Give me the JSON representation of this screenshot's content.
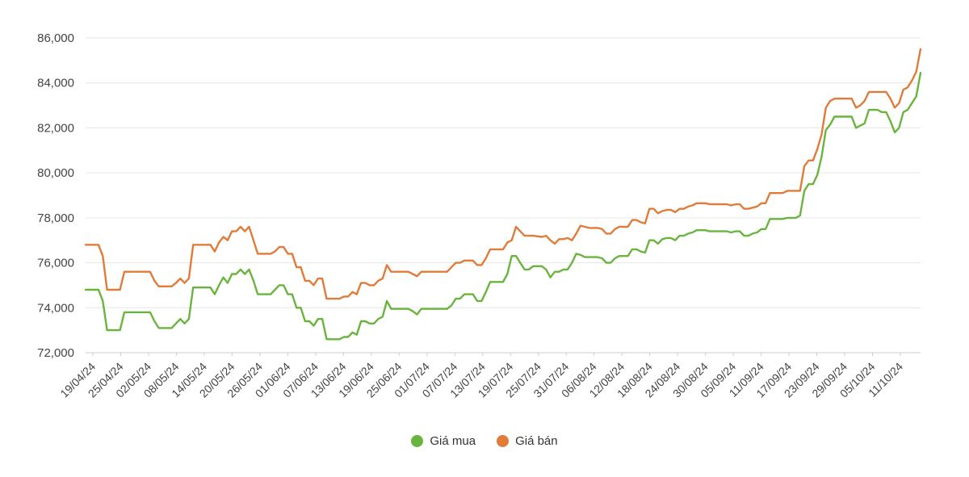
{
  "colors": {
    "buy": "#6ab43e",
    "sell": "#e07b39",
    "grid": "#e6e6e6",
    "axis": "#cccccc",
    "text": "#444444"
  },
  "chart_data": {
    "type": "line",
    "title": "",
    "xlabel": "",
    "ylabel": "",
    "ylim": [
      72000,
      86000
    ],
    "yticks": [
      72000,
      74000,
      76000,
      78000,
      80000,
      82000,
      84000,
      86000
    ],
    "ytick_labels": [
      "72,000",
      "74,000",
      "76,000",
      "78,000",
      "80,000",
      "82,000",
      "84,000",
      "86,000"
    ],
    "grid": true,
    "legend_position": "bottom",
    "x_tick_labels": [
      "19/04/24",
      "25/04/24",
      "02/05/24",
      "08/05/24",
      "14/05/24",
      "20/05/24",
      "26/05/24",
      "01/06/24",
      "07/06/24",
      "13/06/24",
      "19/06/24",
      "25/06/24",
      "01/07/24",
      "07/07/24",
      "13/07/24",
      "19/07/24",
      "25/07/24",
      "31/07/24",
      "06/08/24",
      "12/08/24",
      "18/08/24",
      "24/08/24",
      "30/08/24",
      "05/09/24",
      "11/09/24",
      "17/09/24",
      "23/09/24",
      "29/09/24",
      "05/10/24",
      "11/10/24"
    ],
    "series": [
      {
        "name": "Giá mua",
        "points": [
          [
            0,
            74800
          ],
          [
            3,
            74800
          ],
          [
            4,
            74300
          ],
          [
            5,
            73000
          ],
          [
            8,
            73000
          ],
          [
            9,
            73800
          ],
          [
            11,
            73800
          ],
          [
            15,
            73800
          ],
          [
            16,
            73400
          ],
          [
            17,
            73100
          ],
          [
            20,
            73100
          ],
          [
            21,
            73300
          ],
          [
            22,
            73500
          ],
          [
            23,
            73300
          ],
          [
            24,
            73500
          ],
          [
            25,
            74900
          ],
          [
            27,
            74900
          ],
          [
            29,
            74900
          ],
          [
            30,
            74600
          ],
          [
            31,
            75000
          ],
          [
            32,
            75350
          ],
          [
            33,
            75100
          ],
          [
            34,
            75500
          ],
          [
            35,
            75500
          ],
          [
            36,
            75700
          ],
          [
            37,
            75500
          ],
          [
            38,
            75700
          ],
          [
            39,
            75200
          ],
          [
            40,
            74600
          ],
          [
            43,
            74600
          ],
          [
            44,
            74800
          ],
          [
            45,
            75000
          ],
          [
            46,
            75000
          ],
          [
            47,
            74600
          ],
          [
            48,
            74600
          ],
          [
            49,
            74000
          ],
          [
            50,
            74000
          ],
          [
            51,
            73400
          ],
          [
            52,
            73400
          ],
          [
            53,
            73200
          ],
          [
            54,
            73500
          ],
          [
            55,
            73500
          ],
          [
            56,
            72600
          ],
          [
            59,
            72600
          ],
          [
            60,
            72700
          ],
          [
            61,
            72700
          ],
          [
            62,
            72900
          ],
          [
            63,
            72800
          ],
          [
            64,
            73400
          ],
          [
            65,
            73400
          ],
          [
            66,
            73300
          ],
          [
            67,
            73300
          ],
          [
            68,
            73500
          ],
          [
            69,
            73600
          ],
          [
            70,
            74300
          ],
          [
            71,
            73950
          ],
          [
            75,
            73950
          ],
          [
            76,
            73850
          ],
          [
            77,
            73700
          ],
          [
            78,
            73950
          ],
          [
            84,
            73950
          ],
          [
            85,
            74100
          ],
          [
            86,
            74400
          ],
          [
            87,
            74400
          ],
          [
            88,
            74600
          ],
          [
            90,
            74600
          ],
          [
            91,
            74300
          ],
          [
            92,
            74300
          ],
          [
            93,
            74700
          ],
          [
            94,
            75150
          ],
          [
            97,
            75150
          ],
          [
            98,
            75500
          ],
          [
            99,
            76300
          ],
          [
            100,
            76300
          ],
          [
            101,
            76000
          ],
          [
            102,
            75700
          ],
          [
            103,
            75700
          ],
          [
            104,
            75850
          ],
          [
            106,
            75850
          ],
          [
            107,
            75700
          ],
          [
            108,
            75350
          ],
          [
            109,
            75600
          ],
          [
            110,
            75600
          ],
          [
            111,
            75700
          ],
          [
            112,
            75700
          ],
          [
            113,
            76000
          ],
          [
            114,
            76400
          ],
          [
            115,
            76350
          ],
          [
            116,
            76250
          ],
          [
            119,
            76250
          ],
          [
            120,
            76200
          ],
          [
            121,
            76000
          ],
          [
            122,
            76000
          ],
          [
            123,
            76200
          ],
          [
            124,
            76300
          ],
          [
            126,
            76300
          ],
          [
            127,
            76600
          ],
          [
            128,
            76600
          ],
          [
            129,
            76500
          ],
          [
            130,
            76450
          ],
          [
            131,
            77000
          ],
          [
            132,
            77000
          ],
          [
            133,
            76850
          ],
          [
            134,
            77050
          ],
          [
            135,
            77100
          ],
          [
            136,
            77100
          ],
          [
            137,
            77000
          ],
          [
            138,
            77200
          ],
          [
            139,
            77200
          ],
          [
            140,
            77300
          ],
          [
            141,
            77350
          ],
          [
            142,
            77450
          ],
          [
            144,
            77450
          ],
          [
            145,
            77400
          ],
          [
            149,
            77400
          ],
          [
            150,
            77350
          ],
          [
            151,
            77400
          ],
          [
            152,
            77400
          ],
          [
            153,
            77200
          ],
          [
            154,
            77200
          ],
          [
            155,
            77300
          ],
          [
            156,
            77350
          ],
          [
            157,
            77500
          ],
          [
            158,
            77500
          ],
          [
            159,
            77950
          ],
          [
            162,
            77950
          ],
          [
            163,
            78000
          ],
          [
            165,
            78000
          ],
          [
            166,
            78100
          ],
          [
            167,
            79200
          ],
          [
            168,
            79500
          ],
          [
            169,
            79500
          ],
          [
            170,
            79900
          ],
          [
            171,
            80700
          ],
          [
            172,
            81900
          ],
          [
            173,
            82150
          ],
          [
            174,
            82500
          ],
          [
            178,
            82500
          ],
          [
            179,
            82000
          ],
          [
            180,
            82100
          ],
          [
            181,
            82200
          ],
          [
            182,
            82800
          ],
          [
            184,
            82800
          ],
          [
            185,
            82700
          ],
          [
            186,
            82700
          ],
          [
            187,
            82300
          ],
          [
            188,
            81800
          ],
          [
            189,
            82000
          ],
          [
            190,
            82700
          ],
          [
            191,
            82800
          ],
          [
            192,
            83100
          ],
          [
            193,
            83400
          ],
          [
            194,
            84450
          ]
        ]
      },
      {
        "name": "Giá bán",
        "points": [
          [
            0,
            76800
          ],
          [
            3,
            76800
          ],
          [
            4,
            76300
          ],
          [
            5,
            74800
          ],
          [
            8,
            74800
          ],
          [
            9,
            75600
          ],
          [
            11,
            75600
          ],
          [
            15,
            75600
          ],
          [
            16,
            75200
          ],
          [
            17,
            74950
          ],
          [
            20,
            74950
          ],
          [
            21,
            75100
          ],
          [
            22,
            75300
          ],
          [
            23,
            75100
          ],
          [
            24,
            75300
          ],
          [
            25,
            76800
          ],
          [
            27,
            76800
          ],
          [
            29,
            76800
          ],
          [
            30,
            76500
          ],
          [
            31,
            76900
          ],
          [
            32,
            77150
          ],
          [
            33,
            77000
          ],
          [
            34,
            77400
          ],
          [
            35,
            77400
          ],
          [
            36,
            77600
          ],
          [
            37,
            77400
          ],
          [
            38,
            77600
          ],
          [
            39,
            77000
          ],
          [
            40,
            76400
          ],
          [
            43,
            76400
          ],
          [
            44,
            76500
          ],
          [
            45,
            76700
          ],
          [
            46,
            76700
          ],
          [
            47,
            76400
          ],
          [
            48,
            76400
          ],
          [
            49,
            75800
          ],
          [
            50,
            75800
          ],
          [
            51,
            75200
          ],
          [
            52,
            75200
          ],
          [
            53,
            75000
          ],
          [
            54,
            75300
          ],
          [
            55,
            75300
          ],
          [
            56,
            74400
          ],
          [
            59,
            74400
          ],
          [
            60,
            74500
          ],
          [
            61,
            74500
          ],
          [
            62,
            74700
          ],
          [
            63,
            74600
          ],
          [
            64,
            75100
          ],
          [
            65,
            75100
          ],
          [
            66,
            75000
          ],
          [
            67,
            75000
          ],
          [
            68,
            75200
          ],
          [
            69,
            75300
          ],
          [
            70,
            75900
          ],
          [
            71,
            75600
          ],
          [
            75,
            75600
          ],
          [
            76,
            75500
          ],
          [
            77,
            75400
          ],
          [
            78,
            75600
          ],
          [
            84,
            75600
          ],
          [
            85,
            75800
          ],
          [
            86,
            76000
          ],
          [
            87,
            76000
          ],
          [
            88,
            76100
          ],
          [
            90,
            76100
          ],
          [
            91,
            75900
          ],
          [
            92,
            75900
          ],
          [
            93,
            76200
          ],
          [
            94,
            76600
          ],
          [
            97,
            76600
          ],
          [
            98,
            76900
          ],
          [
            99,
            77000
          ],
          [
            100,
            77600
          ],
          [
            101,
            77400
          ],
          [
            102,
            77200
          ],
          [
            103,
            77200
          ],
          [
            104,
            77200
          ],
          [
            106,
            77150
          ],
          [
            107,
            77200
          ],
          [
            108,
            77000
          ],
          [
            109,
            76850
          ],
          [
            110,
            77050
          ],
          [
            111,
            77050
          ],
          [
            112,
            77100
          ],
          [
            113,
            77000
          ],
          [
            114,
            77300
          ],
          [
            115,
            77650
          ],
          [
            116,
            77600
          ],
          [
            117,
            77550
          ],
          [
            119,
            77550
          ],
          [
            120,
            77500
          ],
          [
            121,
            77300
          ],
          [
            122,
            77300
          ],
          [
            123,
            77500
          ],
          [
            124,
            77600
          ],
          [
            126,
            77600
          ],
          [
            127,
            77900
          ],
          [
            128,
            77900
          ],
          [
            129,
            77800
          ],
          [
            130,
            77750
          ],
          [
            131,
            78400
          ],
          [
            132,
            78400
          ],
          [
            133,
            78200
          ],
          [
            134,
            78300
          ],
          [
            135,
            78350
          ],
          [
            136,
            78350
          ],
          [
            137,
            78250
          ],
          [
            138,
            78400
          ],
          [
            139,
            78400
          ],
          [
            140,
            78500
          ],
          [
            141,
            78550
          ],
          [
            142,
            78650
          ],
          [
            144,
            78650
          ],
          [
            145,
            78600
          ],
          [
            149,
            78600
          ],
          [
            150,
            78550
          ],
          [
            151,
            78600
          ],
          [
            152,
            78600
          ],
          [
            153,
            78400
          ],
          [
            154,
            78400
          ],
          [
            155,
            78450
          ],
          [
            156,
            78500
          ],
          [
            157,
            78650
          ],
          [
            158,
            78650
          ],
          [
            159,
            79100
          ],
          [
            162,
            79100
          ],
          [
            163,
            79200
          ],
          [
            165,
            79200
          ],
          [
            166,
            79200
          ],
          [
            167,
            80300
          ],
          [
            168,
            80550
          ],
          [
            169,
            80550
          ],
          [
            170,
            81050
          ],
          [
            171,
            81700
          ],
          [
            172,
            82900
          ],
          [
            173,
            83200
          ],
          [
            174,
            83300
          ],
          [
            178,
            83300
          ],
          [
            179,
            82900
          ],
          [
            180,
            83000
          ],
          [
            181,
            83200
          ],
          [
            182,
            83600
          ],
          [
            184,
            83600
          ],
          [
            185,
            83600
          ],
          [
            186,
            83600
          ],
          [
            187,
            83300
          ],
          [
            188,
            82900
          ],
          [
            189,
            83100
          ],
          [
            190,
            83700
          ],
          [
            191,
            83800
          ],
          [
            192,
            84100
          ],
          [
            193,
            84500
          ],
          [
            194,
            85500
          ]
        ]
      }
    ]
  },
  "legend": {
    "items": [
      {
        "label": "Giá mua",
        "color": "#6ab43e"
      },
      {
        "label": "Giá bán",
        "color": "#e07b39"
      }
    ]
  }
}
